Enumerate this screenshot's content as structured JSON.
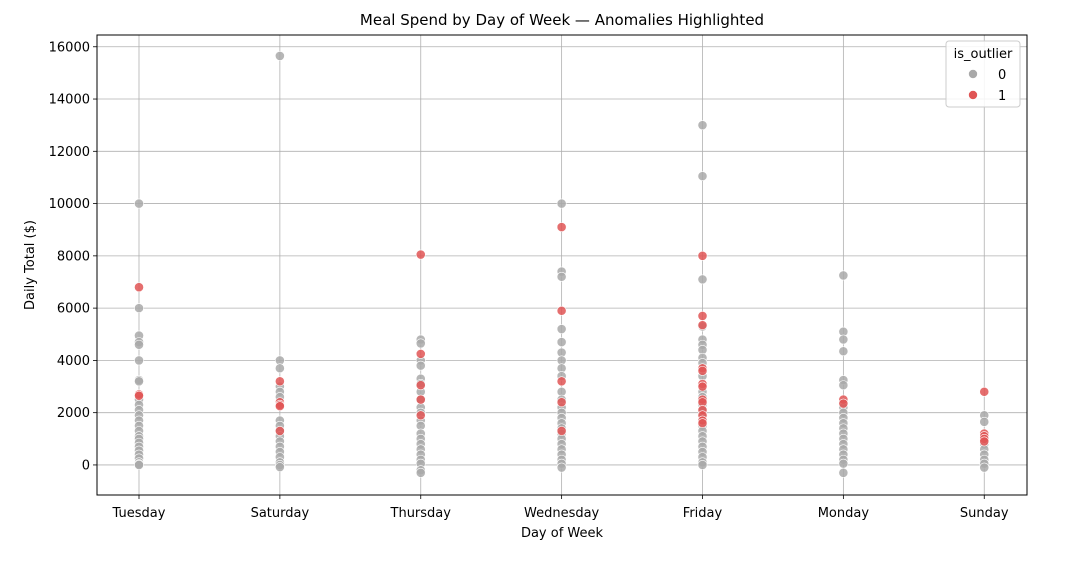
{
  "chart_data": {
    "type": "scatter",
    "title": "Meal Spend by Day of Week — Anomalies Highlighted",
    "xlabel": "Day of Week",
    "ylabel": "Daily Total ($)",
    "categories": [
      "Tuesday",
      "Saturday",
      "Thursday",
      "Wednesday",
      "Friday",
      "Monday",
      "Sunday"
    ],
    "ylim": [
      -1150,
      16450
    ],
    "yticks": [
      0,
      2000,
      4000,
      6000,
      8000,
      10000,
      12000,
      14000,
      16000
    ],
    "grid": true,
    "legend": {
      "title": "is_outlier",
      "placement": "top-right",
      "entries": [
        "0",
        "1"
      ]
    },
    "colors": {
      "0": "#a9a9a9",
      "1": "#e05555"
    },
    "series": [
      {
        "name": "0",
        "points": [
          [
            "Tuesday",
            10000
          ],
          [
            "Tuesday",
            6000
          ],
          [
            "Tuesday",
            4950
          ],
          [
            "Tuesday",
            4700
          ],
          [
            "Tuesday",
            4600
          ],
          [
            "Tuesday",
            4000
          ],
          [
            "Tuesday",
            3250
          ],
          [
            "Tuesday",
            3200
          ],
          [
            "Tuesday",
            2500
          ],
          [
            "Tuesday",
            2300
          ],
          [
            "Tuesday",
            2100
          ],
          [
            "Tuesday",
            1900
          ],
          [
            "Tuesday",
            1700
          ],
          [
            "Tuesday",
            1500
          ],
          [
            "Tuesday",
            1300
          ],
          [
            "Tuesday",
            1100
          ],
          [
            "Tuesday",
            1000
          ],
          [
            "Tuesday",
            850
          ],
          [
            "Tuesday",
            700
          ],
          [
            "Tuesday",
            550
          ],
          [
            "Tuesday",
            400
          ],
          [
            "Tuesday",
            250
          ],
          [
            "Tuesday",
            100
          ],
          [
            "Tuesday",
            30
          ],
          [
            "Tuesday",
            0
          ],
          [
            "Saturday",
            15650
          ],
          [
            "Saturday",
            4000
          ],
          [
            "Saturday",
            3700
          ],
          [
            "Saturday",
            3000
          ],
          [
            "Saturday",
            2800
          ],
          [
            "Saturday",
            2600
          ],
          [
            "Saturday",
            1700
          ],
          [
            "Saturday",
            1500
          ],
          [
            "Saturday",
            1300
          ],
          [
            "Saturday",
            1100
          ],
          [
            "Saturday",
            900
          ],
          [
            "Saturday",
            700
          ],
          [
            "Saturday",
            500
          ],
          [
            "Saturday",
            300
          ],
          [
            "Saturday",
            100
          ],
          [
            "Saturday",
            0
          ],
          [
            "Saturday",
            -80
          ],
          [
            "Thursday",
            4800
          ],
          [
            "Thursday",
            4650
          ],
          [
            "Thursday",
            4000
          ],
          [
            "Thursday",
            3800
          ],
          [
            "Thursday",
            3300
          ],
          [
            "Thursday",
            3100
          ],
          [
            "Thursday",
            2800
          ],
          [
            "Thursday",
            2500
          ],
          [
            "Thursday",
            2200
          ],
          [
            "Thursday",
            2000
          ],
          [
            "Thursday",
            1700
          ],
          [
            "Thursday",
            1500
          ],
          [
            "Thursday",
            1200
          ],
          [
            "Thursday",
            1000
          ],
          [
            "Thursday",
            800
          ],
          [
            "Thursday",
            600
          ],
          [
            "Thursday",
            400
          ],
          [
            "Thursday",
            200
          ],
          [
            "Thursday",
            50
          ],
          [
            "Thursday",
            -200
          ],
          [
            "Thursday",
            -300
          ],
          [
            "Wednesday",
            10000
          ],
          [
            "Wednesday",
            7400
          ],
          [
            "Wednesday",
            7200
          ],
          [
            "Wednesday",
            5200
          ],
          [
            "Wednesday",
            4700
          ],
          [
            "Wednesday",
            4300
          ],
          [
            "Wednesday",
            4000
          ],
          [
            "Wednesday",
            3700
          ],
          [
            "Wednesday",
            3400
          ],
          [
            "Wednesday",
            2800
          ],
          [
            "Wednesday",
            2500
          ],
          [
            "Wednesday",
            2200
          ],
          [
            "Wednesday",
            2000
          ],
          [
            "Wednesday",
            1800
          ],
          [
            "Wednesday",
            1600
          ],
          [
            "Wednesday",
            1400
          ],
          [
            "Wednesday",
            1200
          ],
          [
            "Wednesday",
            1000
          ],
          [
            "Wednesday",
            800
          ],
          [
            "Wednesday",
            600
          ],
          [
            "Wednesday",
            400
          ],
          [
            "Wednesday",
            200
          ],
          [
            "Wednesday",
            50
          ],
          [
            "Wednesday",
            -100
          ],
          [
            "Friday",
            13000
          ],
          [
            "Friday",
            11050
          ],
          [
            "Friday",
            7100
          ],
          [
            "Friday",
            5300
          ],
          [
            "Friday",
            4800
          ],
          [
            "Friday",
            4600
          ],
          [
            "Friday",
            4400
          ],
          [
            "Friday",
            4100
          ],
          [
            "Friday",
            3900
          ],
          [
            "Friday",
            3400
          ],
          [
            "Friday",
            2800
          ],
          [
            "Friday",
            2600
          ],
          [
            "Friday",
            2300
          ],
          [
            "Friday",
            2100
          ],
          [
            "Friday",
            1900
          ],
          [
            "Friday",
            1700
          ],
          [
            "Friday",
            1500
          ],
          [
            "Friday",
            1300
          ],
          [
            "Friday",
            1100
          ],
          [
            "Friday",
            900
          ],
          [
            "Friday",
            700
          ],
          [
            "Friday",
            500
          ],
          [
            "Friday",
            300
          ],
          [
            "Friday",
            100
          ],
          [
            "Friday",
            0
          ],
          [
            "Monday",
            7250
          ],
          [
            "Monday",
            5100
          ],
          [
            "Monday",
            4800
          ],
          [
            "Monday",
            4350
          ],
          [
            "Monday",
            3250
          ],
          [
            "Monday",
            3050
          ],
          [
            "Monday",
            2400
          ],
          [
            "Monday",
            2200
          ],
          [
            "Monday",
            2000
          ],
          [
            "Monday",
            1800
          ],
          [
            "Monday",
            1600
          ],
          [
            "Monday",
            1400
          ],
          [
            "Monday",
            1200
          ],
          [
            "Monday",
            1000
          ],
          [
            "Monday",
            800
          ],
          [
            "Monday",
            600
          ],
          [
            "Monday",
            400
          ],
          [
            "Monday",
            200
          ],
          [
            "Monday",
            50
          ],
          [
            "Monday",
            -300
          ],
          [
            "Sunday",
            1900
          ],
          [
            "Sunday",
            1650
          ],
          [
            "Sunday",
            800
          ],
          [
            "Sunday",
            600
          ],
          [
            "Sunday",
            400
          ],
          [
            "Sunday",
            200
          ],
          [
            "Sunday",
            50
          ],
          [
            "Sunday",
            -100
          ]
        ]
      },
      {
        "name": "1",
        "points": [
          [
            "Tuesday",
            6800
          ],
          [
            "Tuesday",
            2700
          ],
          [
            "Tuesday",
            2650
          ],
          [
            "Saturday",
            3200
          ],
          [
            "Saturday",
            2400
          ],
          [
            "Saturday",
            2300
          ],
          [
            "Saturday",
            2250
          ],
          [
            "Saturday",
            1300
          ],
          [
            "Thursday",
            8050
          ],
          [
            "Thursday",
            4250
          ],
          [
            "Thursday",
            3050
          ],
          [
            "Thursday",
            2500
          ],
          [
            "Thursday",
            1900
          ],
          [
            "Wednesday",
            9100
          ],
          [
            "Wednesday",
            5900
          ],
          [
            "Wednesday",
            3200
          ],
          [
            "Wednesday",
            2400
          ],
          [
            "Wednesday",
            1300
          ],
          [
            "Friday",
            8000
          ],
          [
            "Friday",
            5700
          ],
          [
            "Friday",
            5350
          ],
          [
            "Friday",
            3700
          ],
          [
            "Friday",
            3600
          ],
          [
            "Friday",
            3100
          ],
          [
            "Friday",
            3000
          ],
          [
            "Friday",
            2500
          ],
          [
            "Friday",
            2400
          ],
          [
            "Friday",
            2100
          ],
          [
            "Friday",
            1900
          ],
          [
            "Friday",
            1700
          ],
          [
            "Friday",
            1600
          ],
          [
            "Monday",
            2500
          ],
          [
            "Monday",
            2350
          ],
          [
            "Sunday",
            2800
          ],
          [
            "Sunday",
            1200
          ],
          [
            "Sunday",
            1100
          ],
          [
            "Sunday",
            1000
          ],
          [
            "Sunday",
            900
          ]
        ]
      }
    ]
  }
}
